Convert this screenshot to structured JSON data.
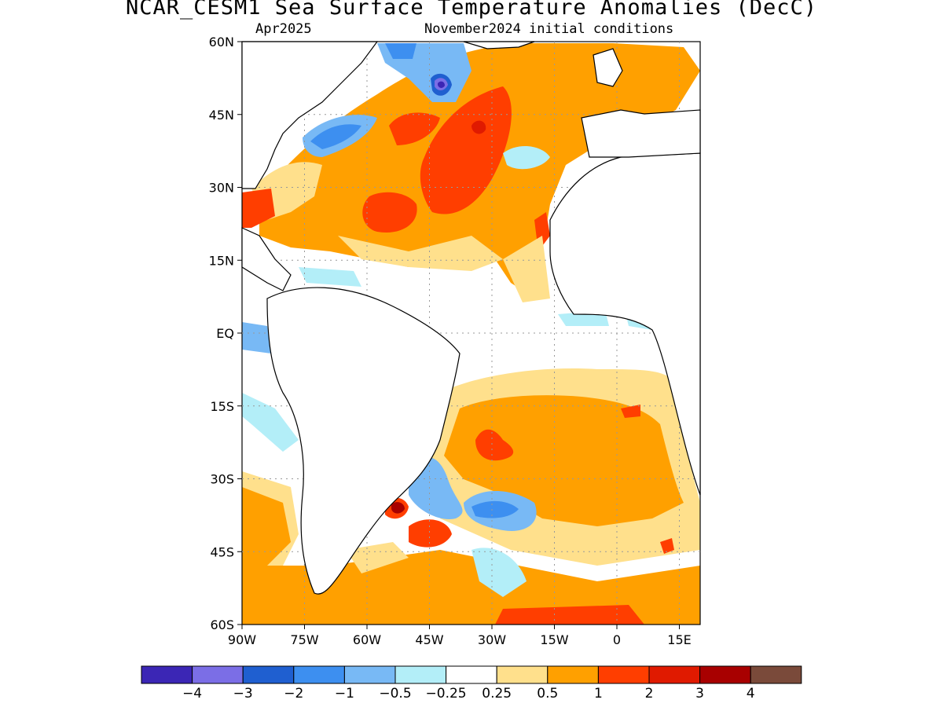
{
  "header": {
    "title": "NCAR_CESM1 Sea Surface Temperature Anomalies (DecC)",
    "month": "Apr2025",
    "init": "November2024 initial conditions"
  },
  "map": {
    "region": "Atlantic Ocean",
    "lon_range": [
      -90,
      20
    ],
    "lat_range": [
      -60,
      60
    ],
    "grid": "dotted",
    "lat_labels": [
      "60N",
      "45N",
      "30N",
      "15N",
      "EQ",
      "15S",
      "30S",
      "45S",
      "60S"
    ],
    "lat_values": [
      60,
      45,
      30,
      15,
      0,
      -15,
      -30,
      -45,
      -60
    ],
    "lon_labels": [
      "90W",
      "75W",
      "60W",
      "45W",
      "30W",
      "15W",
      "0",
      "15E"
    ],
    "lon_values": [
      -90,
      -75,
      -60,
      -45,
      -30,
      -15,
      0,
      15
    ]
  },
  "colorbar": {
    "colors": [
      "#3b26b5",
      "#7b6ee6",
      "#1f5fd0",
      "#3d8ff0",
      "#78b9f5",
      "#b3eef8",
      "#ffffff",
      "#ffe08c",
      "#ffa000",
      "#ff3e00",
      "#e01a00",
      "#a80000",
      "#7a4a3a"
    ],
    "labels": [
      "−4",
      "−3",
      "−2",
      "−1",
      "−0.5",
      "−0.25",
      "0.25",
      "0.5",
      "1",
      "2",
      "3",
      "4"
    ]
  }
}
